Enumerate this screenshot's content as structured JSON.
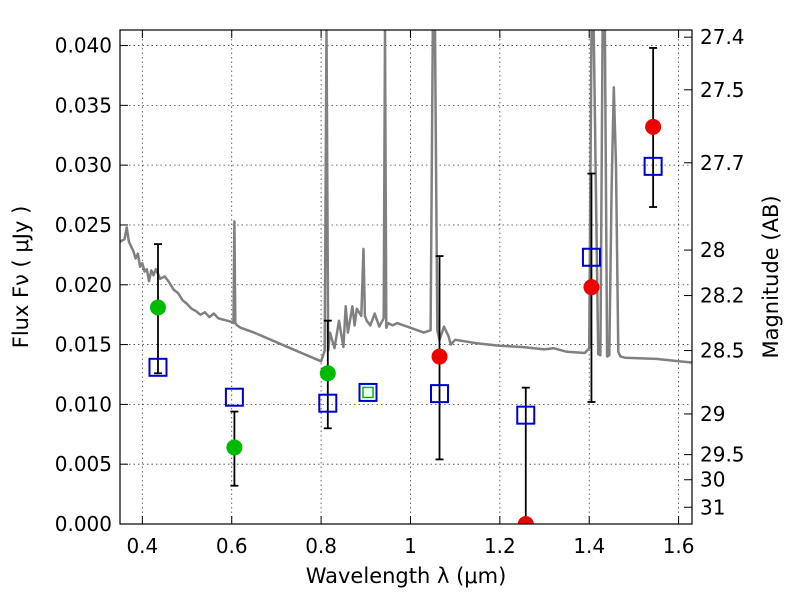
{
  "chart_data": {
    "type": "scatter",
    "title": "",
    "xlabel": "Wavelength  λ (μm)",
    "ylabel": "Flux  Fν  ( μJy )",
    "y2label": "Magnitude (AB)",
    "xlim": [
      0.35,
      1.63
    ],
    "ylim": [
      0.0,
      0.0413
    ],
    "grid": true,
    "legend": "none",
    "x_ticks": [
      0.4,
      0.6,
      0.8,
      1.0,
      1.2,
      1.4,
      1.6
    ],
    "x_tick_labels": [
      "0.4",
      "0.6",
      "0.8",
      "1",
      "1.2",
      "1.4",
      "1.6"
    ],
    "y_ticks": [
      0.0,
      0.005,
      0.01,
      0.015,
      0.02,
      0.025,
      0.03,
      0.035,
      0.04
    ],
    "y_tick_labels": [
      "0.000",
      "0.005",
      "0.010",
      "0.015",
      "0.020",
      "0.025",
      "0.030",
      "0.035",
      "0.040"
    ],
    "y2_ticks": [
      {
        "flux": 0.0407,
        "label": "27.4"
      },
      {
        "flux": 0.0363,
        "label": "27.5"
      },
      {
        "flux": 0.0302,
        "label": "27.7"
      },
      {
        "flux": 0.0229,
        "label": "28"
      },
      {
        "flux": 0.0191,
        "label": "28.2"
      },
      {
        "flux": 0.0145,
        "label": "28.5"
      },
      {
        "flux": 0.0092,
        "label": "29"
      },
      {
        "flux": 0.0058,
        "label": "29.5"
      },
      {
        "flux": 0.0037,
        "label": "30"
      },
      {
        "flux": 0.0014,
        "label": "31"
      }
    ],
    "spectrum": {
      "color": "#808080",
      "x": [
        0.35,
        0.36,
        0.365,
        0.37,
        0.375,
        0.38,
        0.385,
        0.39,
        0.395,
        0.4,
        0.405,
        0.41,
        0.415,
        0.42,
        0.425,
        0.43,
        0.44,
        0.45,
        0.46,
        0.47,
        0.48,
        0.49,
        0.5,
        0.51,
        0.52,
        0.53,
        0.54,
        0.55,
        0.56,
        0.57,
        0.58,
        0.59,
        0.6,
        0.604,
        0.606,
        0.608,
        0.612,
        0.62,
        0.65,
        0.7,
        0.75,
        0.8,
        0.808,
        0.812,
        0.816,
        0.82,
        0.83,
        0.84,
        0.85,
        0.855,
        0.86,
        0.87,
        0.875,
        0.88,
        0.89,
        0.895,
        0.898,
        0.902,
        0.91,
        0.92,
        0.93,
        0.94,
        0.943,
        0.946,
        0.95,
        0.96,
        0.97,
        1.0,
        1.03,
        1.045,
        1.05,
        1.055,
        1.06,
        1.065,
        1.075,
        1.085,
        1.09,
        1.1,
        1.15,
        1.2,
        1.25,
        1.3,
        1.32,
        1.35,
        1.39,
        1.4,
        1.405,
        1.41,
        1.42,
        1.425,
        1.43,
        1.435,
        1.44,
        1.445,
        1.45,
        1.455,
        1.46,
        1.465,
        1.47,
        1.48,
        1.55,
        1.6,
        1.63
      ],
      "y": [
        0.0236,
        0.0238,
        0.0248,
        0.0236,
        0.0232,
        0.0228,
        0.0222,
        0.0226,
        0.0215,
        0.0218,
        0.0211,
        0.0213,
        0.0203,
        0.0212,
        0.0208,
        0.0213,
        0.0205,
        0.0207,
        0.0202,
        0.0196,
        0.0193,
        0.0187,
        0.0184,
        0.018,
        0.0178,
        0.0175,
        0.0177,
        0.0173,
        0.0176,
        0.0172,
        0.0171,
        0.017,
        0.0169,
        0.0168,
        0.0253,
        0.0168,
        0.0166,
        0.0164,
        0.016,
        0.0152,
        0.0144,
        0.0136,
        0.0145,
        0.0413,
        0.0145,
        0.016,
        0.0147,
        0.017,
        0.0148,
        0.0182,
        0.016,
        0.0182,
        0.0166,
        0.018,
        0.0174,
        0.023,
        0.0174,
        0.017,
        0.0166,
        0.0176,
        0.0165,
        0.0172,
        0.0413,
        0.0164,
        0.0168,
        0.0166,
        0.0168,
        0.0164,
        0.016,
        0.0162,
        0.0413,
        0.0413,
        0.0162,
        0.0154,
        0.0165,
        0.0157,
        0.015,
        0.0154,
        0.0151,
        0.0149,
        0.0148,
        0.0146,
        0.0147,
        0.0144,
        0.0143,
        0.0147,
        0.0413,
        0.0413,
        0.0142,
        0.0141,
        0.0413,
        0.0413,
        0.014,
        0.0141,
        0.028,
        0.0365,
        0.03,
        0.0144,
        0.014,
        0.0139,
        0.0138,
        0.0136,
        0.0135
      ]
    },
    "error_bars": [
      {
        "x": 0.435,
        "y": 0.0181,
        "low": 0.0126,
        "high": 0.0234
      },
      {
        "x": 0.606,
        "y": 0.0064,
        "low": 0.0032,
        "high": 0.0094
      },
      {
        "x": 0.815,
        "y": 0.0126,
        "low": 0.008,
        "high": 0.017
      },
      {
        "x": 1.065,
        "y": 0.014,
        "low": 0.0054,
        "high": 0.0224
      },
      {
        "x": 1.258,
        "y": 0.0,
        "low": 0.0,
        "high": 0.0114
      },
      {
        "x": 1.405,
        "y": 0.0198,
        "low": 0.0102,
        "high": 0.0293
      },
      {
        "x": 1.543,
        "y": 0.0332,
        "low": 0.0265,
        "high": 0.0398
      }
    ],
    "series": [
      {
        "marker": "circle",
        "color": "#00bb00",
        "x": [
          0.435,
          0.606,
          0.815
        ],
        "y": [
          0.0181,
          0.0064,
          0.0126
        ]
      },
      {
        "marker": "circle",
        "color": "#ee0000",
        "x": [
          1.065,
          1.258,
          1.405,
          1.543
        ],
        "y": [
          0.014,
          0.0,
          0.0198,
          0.0332
        ]
      },
      {
        "marker": "open-square",
        "color": "#0000cc",
        "x": [
          0.435,
          0.606,
          0.815,
          0.905,
          1.065,
          1.258,
          1.405,
          1.543
        ],
        "y": [
          0.0131,
          0.0106,
          0.0101,
          0.011,
          0.0109,
          0.0091,
          0.0223,
          0.0299
        ]
      },
      {
        "marker": "open-square-small",
        "color": "#00bb00",
        "x": [
          0.905
        ],
        "y": [
          0.011
        ]
      }
    ]
  }
}
